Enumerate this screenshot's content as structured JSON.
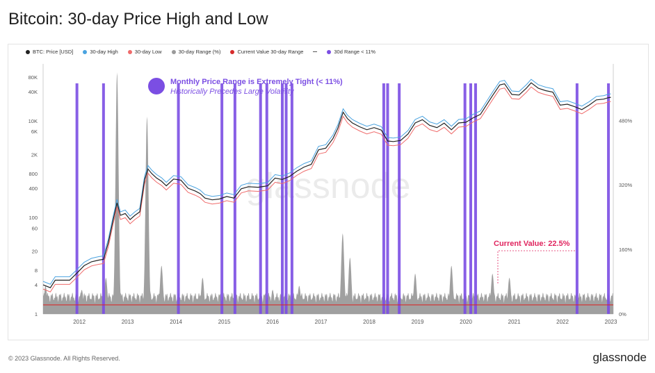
{
  "title": "Bitcoin: 30-day Price High and Low",
  "legend": [
    {
      "label": "BTC: Price [USD]",
      "color": "#222222",
      "kind": "dot"
    },
    {
      "label": "30-day High",
      "color": "#4aa3e0",
      "kind": "dot"
    },
    {
      "label": "30-day Low",
      "color": "#ef6b6b",
      "kind": "dot"
    },
    {
      "label": "30-day Range (%)",
      "color": "#9a9a9a",
      "kind": "dot"
    },
    {
      "label": "Current Value 30-day Range",
      "color": "#d62b2b",
      "kind": "dot"
    },
    {
      "label": "",
      "color": "#555555",
      "kind": "dash"
    },
    {
      "label": "30d Range < 11%",
      "color": "#7b4ee3",
      "kind": "dot"
    }
  ],
  "annotation": {
    "line1": "Monthly Price Range is Extremely Tight (< 11%)",
    "line2": "Historically Precedes Large Volatility",
    "color": "#7b4ee3"
  },
  "current_value_label": "Current Value: 22.5%",
  "watermark": "glassnode",
  "footer": "© 2023 Glassnode. All Rights Reserved.",
  "brand": "glassnode",
  "chart_data": {
    "type": "line",
    "title": "Bitcoin: 30-day Price High and Low",
    "x_ticks": [
      "2012",
      "2013",
      "2014",
      "2015",
      "2016",
      "2017",
      "2018",
      "2019",
      "2020",
      "2021",
      "2022",
      "2023"
    ],
    "y_left_ticks": [
      {
        "label": "80K",
        "value": 80000
      },
      {
        "label": "40K",
        "value": 40000
      },
      {
        "label": "10K",
        "value": 10000
      },
      {
        "label": "6K",
        "value": 6000
      },
      {
        "label": "2K",
        "value": 2000
      },
      {
        "label": "800",
        "value": 800
      },
      {
        "label": "400",
        "value": 400
      },
      {
        "label": "100",
        "value": 100
      },
      {
        "label": "60",
        "value": 60
      },
      {
        "label": "20",
        "value": 20
      },
      {
        "label": "8",
        "value": 8
      },
      {
        "label": "4",
        "value": 4
      },
      {
        "label": "1",
        "value": 1
      }
    ],
    "y_left_scale": "log",
    "y_left_range": [
      1,
      150000
    ],
    "y_right_ticks": [
      {
        "label": "480%",
        "value": 480
      },
      {
        "label": "320%",
        "value": 320
      },
      {
        "label": "160%",
        "value": 160
      },
      {
        "label": "0%",
        "value": 0
      }
    ],
    "y_right_range": [
      0,
      620
    ],
    "x_range": [
      2011.75,
      2023.55
    ],
    "current_range_value": 22.5,
    "price_series": {
      "name": "BTC: Price [USD]",
      "x": [
        2011.75,
        2011.9,
        2012.0,
        2012.1,
        2012.2,
        2012.3,
        2012.45,
        2012.6,
        2012.75,
        2012.9,
        2013.0,
        2013.1,
        2013.2,
        2013.28,
        2013.35,
        2013.45,
        2013.55,
        2013.65,
        2013.75,
        2013.85,
        2013.92,
        2014.0,
        2014.1,
        2014.2,
        2014.3,
        2014.45,
        2014.6,
        2014.75,
        2014.9,
        2015.0,
        2015.1,
        2015.25,
        2015.4,
        2015.55,
        2015.7,
        2015.85,
        2016.0,
        2016.2,
        2016.4,
        2016.55,
        2016.7,
        2016.85,
        2017.0,
        2017.15,
        2017.3,
        2017.45,
        2017.6,
        2017.75,
        2017.85,
        2017.96,
        2018.05,
        2018.15,
        2018.3,
        2018.45,
        2018.6,
        2018.75,
        2018.88,
        2019.0,
        2019.15,
        2019.3,
        2019.45,
        2019.6,
        2019.75,
        2019.9,
        2020.05,
        2020.2,
        2020.35,
        2020.5,
        2020.65,
        2020.8,
        2020.95,
        2021.05,
        2021.2,
        2021.3,
        2021.45,
        2021.6,
        2021.75,
        2021.85,
        2022.0,
        2022.15,
        2022.3,
        2022.45,
        2022.6,
        2022.75,
        2022.9,
        2023.05,
        2023.2,
        2023.35,
        2023.45,
        2023.5
      ],
      "y": [
        4,
        3.5,
        5,
        5,
        5,
        5,
        7,
        10,
        12,
        13,
        13.5,
        30,
        90,
        200,
        110,
        120,
        90,
        110,
        130,
        600,
        1000,
        800,
        650,
        560,
        450,
        620,
        590,
        400,
        350,
        310,
        250,
        230,
        240,
        270,
        250,
        390,
        430,
        420,
        450,
        650,
        610,
        700,
        900,
        1100,
        1250,
        2500,
        2700,
        4300,
        7000,
        15000,
        11000,
        9000,
        7500,
        6500,
        7200,
        6400,
        3800,
        3700,
        3900,
        5300,
        9000,
        10500,
        8000,
        7200,
        8900,
        6500,
        9000,
        9300,
        11500,
        13500,
        23000,
        33000,
        55000,
        58000,
        35000,
        34000,
        47000,
        61000,
        47000,
        42000,
        39000,
        21000,
        22000,
        19500,
        17000,
        21000,
        27000,
        28000,
        30000,
        30500
      ]
    },
    "range_series_peaks": [
      {
        "x": 2011.8,
        "value": 70
      },
      {
        "x": 2012.55,
        "value": 60
      },
      {
        "x": 2013.05,
        "value": 90
      },
      {
        "x": 2013.28,
        "value": 600
      },
      {
        "x": 2013.9,
        "value": 490
      },
      {
        "x": 2014.2,
        "value": 120
      },
      {
        "x": 2015.05,
        "value": 90
      },
      {
        "x": 2016.5,
        "value": 60
      },
      {
        "x": 2017.05,
        "value": 70
      },
      {
        "x": 2017.95,
        "value": 200
      },
      {
        "x": 2018.1,
        "value": 140
      },
      {
        "x": 2019.45,
        "value": 100
      },
      {
        "x": 2020.2,
        "value": 120
      },
      {
        "x": 2021.05,
        "value": 100
      },
      {
        "x": 2021.4,
        "value": 90
      }
    ],
    "tight_range_periods": [
      2012.45,
      2013.0,
      2014.55,
      2015.45,
      2015.72,
      2016.25,
      2016.38,
      2016.7,
      2016.78,
      2016.9,
      2018.8,
      2018.88,
      2019.12,
      2020.48,
      2020.6,
      2020.7,
      2022.8,
      2023.45
    ]
  }
}
